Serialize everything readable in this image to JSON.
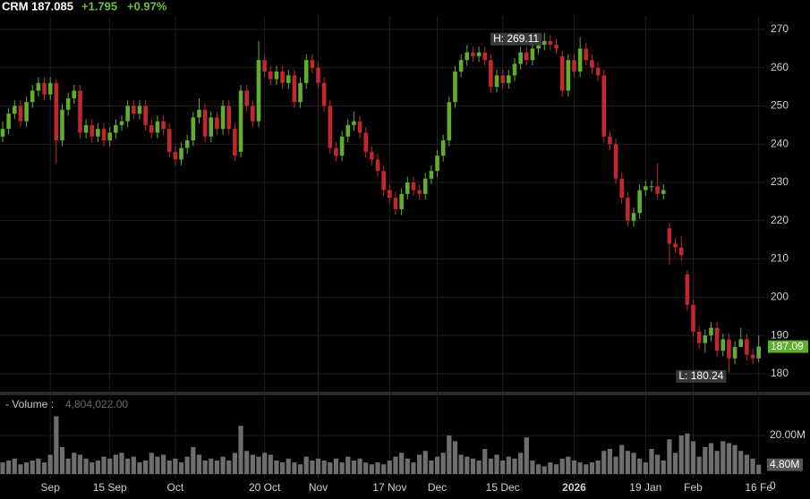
{
  "header": {
    "symbol": "CRM",
    "price": "187.085",
    "change": "+1.795",
    "change_pct": "+0.97%"
  },
  "chart_data": [
    {
      "type": "candlestick",
      "open": [
        242,
        244,
        248,
        250,
        246,
        251,
        254,
        256,
        253,
        256,
        241,
        249,
        252,
        254,
        243,
        245,
        242,
        244,
        241,
        243,
        245,
        246,
        250,
        248,
        250,
        245,
        243,
        246,
        244,
        238,
        236,
        239,
        241,
        247,
        249,
        242,
        247,
        244,
        250,
        244,
        238,
        254,
        250,
        246,
        262,
        259,
        257,
        259,
        256,
        258,
        251,
        256,
        262,
        260,
        256,
        250,
        239,
        237,
        242,
        245,
        246,
        243,
        238,
        236,
        233,
        228,
        226,
        223,
        227,
        230,
        228,
        227,
        231,
        233,
        237,
        241,
        251,
        259,
        262,
        264,
        263,
        264,
        262,
        255,
        258,
        256,
        258,
        261,
        264,
        262,
        265,
        266,
        267,
        266,
        263,
        254,
        262,
        259,
        265,
        262,
        260,
        258,
        242,
        240,
        231,
        226,
        220,
        222,
        228,
        229,
        229,
        227,
        218,
        214,
        213,
        206,
        198,
        191,
        188,
        190,
        192,
        186,
        189,
        184,
        187,
        189,
        185,
        184
      ],
      "high": [
        246,
        249.5,
        251.5,
        251.5,
        252.5,
        255.5,
        257.5,
        257.5,
        257.5,
        257,
        250.5,
        253.5,
        255.5,
        255.5,
        246.5,
        246.5,
        245.5,
        245.5,
        244.5,
        246.5,
        247.5,
        251.5,
        251.5,
        251.5,
        251.5,
        246.5,
        247.5,
        247.5,
        245.5,
        239.5,
        240.5,
        242.5,
        248.5,
        252,
        250.5,
        248.5,
        248.5,
        251.5,
        251.5,
        245.5,
        255.5,
        255.5,
        251.5,
        267,
        263.5,
        260.5,
        260.5,
        260.5,
        259.5,
        259.5,
        257.5,
        263.5,
        263.5,
        261.5,
        257.5,
        251.5,
        240.5,
        243.5,
        246.5,
        248.5,
        247.5,
        244.5,
        239.5,
        237.5,
        234.5,
        229.5,
        227.5,
        228.5,
        231.5,
        231.5,
        229.5,
        232.5,
        234.5,
        238.5,
        242.5,
        252.5,
        260.5,
        263.5,
        266,
        265.5,
        265.5,
        265.5,
        263.5,
        259.5,
        259.5,
        259.5,
        262.5,
        265.5,
        265.5,
        266.5,
        267.5,
        269.11,
        268.5,
        267.5,
        264.5,
        263.5,
        263.5,
        268,
        266.5,
        263.5,
        261.5,
        259.5,
        243.5,
        241.5,
        232.5,
        227.5,
        223.5,
        229.5,
        230.5,
        230.5,
        235,
        229.5,
        219.5,
        215.5,
        216,
        207,
        199.5,
        192.5,
        191.5,
        193.5,
        193.5,
        190.5,
        190.5,
        188.5,
        192,
        190.5,
        186.5,
        190
      ],
      "low": [
        240.5,
        242.5,
        246.5,
        244.5,
        244.5,
        249.5,
        252.5,
        251.5,
        251.5,
        235,
        239.5,
        247.5,
        250.5,
        241.5,
        241.5,
        240.5,
        240.5,
        239.5,
        239.5,
        241.5,
        243.5,
        244.5,
        246.5,
        246.5,
        243.5,
        241.5,
        241.5,
        242.5,
        236.5,
        234.5,
        234.5,
        237.5,
        239.5,
        245.5,
        240.5,
        240.5,
        242.5,
        242.5,
        242.5,
        235.5,
        236.5,
        248.5,
        244.5,
        244.5,
        257.5,
        255.5,
        255.5,
        254.5,
        254.5,
        249.5,
        249.5,
        254.5,
        258.5,
        254.5,
        248.5,
        237.5,
        235.5,
        235.5,
        240.5,
        243.5,
        241.5,
        236.5,
        234.5,
        231.5,
        226.5,
        224.5,
        221.5,
        221.5,
        225.5,
        226.5,
        225.5,
        225.5,
        229.5,
        231.5,
        235.5,
        239.5,
        249.5,
        257.5,
        260.5,
        261.5,
        261.5,
        260.5,
        253.5,
        253.5,
        254.5,
        254.5,
        256.5,
        259.5,
        260.5,
        260.5,
        263.5,
        264.5,
        264.5,
        263.5,
        252.5,
        252.5,
        257.5,
        257.5,
        260.5,
        258.5,
        256.5,
        240.5,
        238.5,
        229.5,
        224.5,
        218.5,
        218.5,
        220.5,
        226.5,
        227.5,
        225.5,
        225.5,
        208.5,
        211.5,
        209.5,
        196.5,
        189.5,
        186.5,
        185.5,
        188.5,
        184.5,
        184.5,
        180.24,
        182.5,
        187.5,
        183.5,
        182.5,
        183
      ],
      "close": [
        244,
        248,
        250,
        246,
        251,
        254,
        256,
        253,
        256,
        241,
        249,
        252,
        254,
        243,
        245,
        242,
        244,
        241,
        243,
        245,
        246,
        250,
        248,
        250,
        245,
        243,
        246,
        244,
        238,
        236,
        239,
        241,
        247,
        249,
        242,
        247,
        244,
        250,
        244,
        237,
        254,
        250,
        246,
        262,
        259,
        257,
        259,
        256,
        258,
        251,
        256,
        262,
        260,
        256,
        250,
        239,
        237,
        242,
        245,
        246,
        243,
        238,
        236,
        233,
        228,
        226,
        223,
        227,
        230,
        228,
        227,
        231,
        233,
        237,
        241,
        251,
        259,
        262,
        264,
        263,
        264,
        262,
        255,
        258,
        256,
        258,
        261,
        264,
        262,
        265,
        266,
        267,
        266,
        265,
        254,
        262,
        259,
        265,
        262,
        260,
        258,
        242,
        240,
        231,
        226,
        220,
        222,
        228,
        229,
        229,
        227,
        228,
        214,
        213,
        211,
        198,
        191,
        188,
        190,
        192,
        186,
        189,
        184,
        187,
        189,
        185,
        184,
        187.085
      ],
      "up_color": "#5fae2e",
      "down_color": "#c1272d",
      "high_label": "H: 269.11",
      "low_label": "L: 180.24",
      "last_price_label": "187.09",
      "xlim": [
        -0.45,
        128.1
      ],
      "xticks": [
        {
          "value": 8,
          "label": "Sep"
        },
        {
          "value": 18,
          "label": "15 Sep"
        },
        {
          "value": 29,
          "label": "Oct"
        },
        {
          "value": 44,
          "label": "20 Oct"
        },
        {
          "value": 53,
          "label": "Nov"
        },
        {
          "value": 65,
          "label": "17 Nov"
        },
        {
          "value": 73,
          "label": "Dec"
        },
        {
          "value": 84,
          "label": "15 Dec"
        },
        {
          "value": 96,
          "label": "2026"
        },
        {
          "value": 108,
          "label": "19 Jan"
        },
        {
          "value": 116,
          "label": "Feb"
        },
        {
          "value": 127,
          "label": "16 Fe"
        }
      ],
      "ylim": [
        175.3,
        277.7
      ],
      "yticks": [
        180,
        190,
        200,
        210,
        220,
        230,
        240,
        250,
        260,
        270
      ],
      "grid": true
    },
    {
      "type": "bar",
      "title": "- Volume :",
      "value_label": "4,804,022.00",
      "last_value_label": "4.80M",
      "color": "#6e6e6e",
      "values": [
        6,
        7,
        8,
        5,
        6,
        7,
        8,
        6,
        10,
        30,
        14,
        8,
        11,
        10,
        8,
        6,
        7,
        9,
        8,
        10,
        11,
        8,
        9,
        6,
        7,
        11,
        9,
        10,
        7,
        8,
        6,
        9,
        14,
        10,
        7,
        8,
        7,
        9,
        7,
        11,
        25,
        12,
        10,
        9,
        11,
        10,
        7,
        6,
        8,
        6,
        5,
        9,
        7,
        8,
        7,
        6,
        8,
        6,
        9,
        7,
        8,
        6,
        5,
        6,
        5,
        7,
        9,
        11,
        8,
        6,
        10,
        12,
        7,
        9,
        11,
        20,
        17,
        10,
        9,
        8,
        7,
        13,
        8,
        10,
        7,
        9,
        8,
        11,
        19,
        7,
        5,
        4,
        6,
        5,
        8,
        9,
        7,
        6,
        5,
        6,
        7,
        12,
        13,
        9,
        15,
        12,
        11,
        8,
        6,
        13,
        10,
        7,
        18,
        11,
        20,
        21,
        17,
        9,
        14,
        16,
        12,
        17,
        16,
        15,
        12,
        10,
        8,
        4.804022
      ],
      "ylim": [
        0,
        39.5
      ],
      "yticks": [
        0,
        {
          "value": 20,
          "label": "20.00M"
        }
      ]
    }
  ]
}
